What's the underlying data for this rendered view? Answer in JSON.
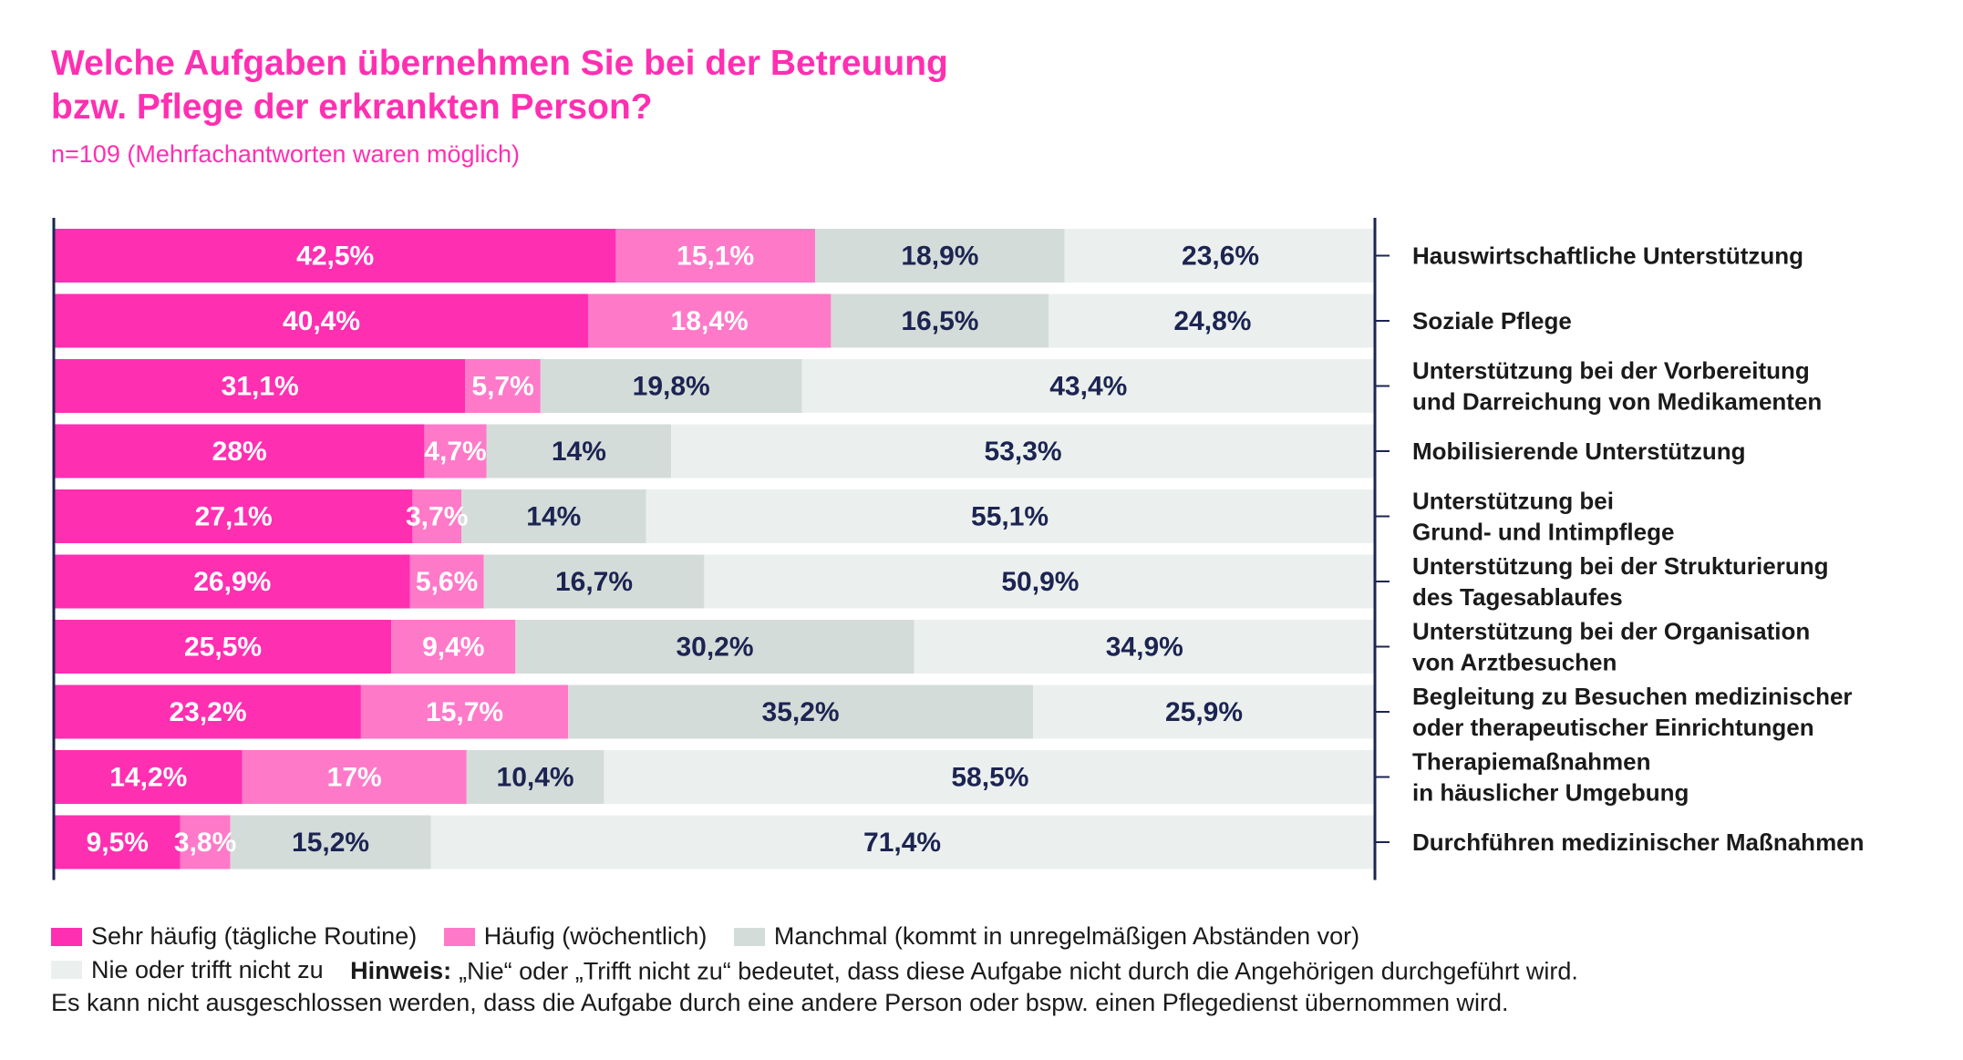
{
  "title_line1": "Welche Aufgaben übernehmen Sie bei der Betreuung",
  "title_line2": "bzw. Pflege der erkrankten Person?",
  "subtitle": "n=109 (Mehrfachantworten waren möglich)",
  "colors": {
    "sehr_haeufig": "#ff2fb1",
    "haeufig": "#ff79c9",
    "manchmal": "#d4dcd9",
    "nie": "#ebf0ee",
    "text_dark": "#1c2452",
    "text_light": "#ffffff",
    "axis": "#1c2452"
  },
  "chart_data": {
    "type": "bar",
    "orientation": "horizontal",
    "stacked": true,
    "xlim": [
      0,
      100
    ],
    "categories": [
      [
        "Hauswirtschaftliche Unterstützung"
      ],
      [
        "Soziale Pflege"
      ],
      [
        "Unterstützung bei der Vorbereitung",
        "und Darreichung von Medikamenten"
      ],
      [
        "Mobilisierende Unterstützung"
      ],
      [
        "Unterstützung bei",
        "Grund- und Intimpflege"
      ],
      [
        "Unterstützung bei der Strukturierung",
        "des Tagesablaufes"
      ],
      [
        "Unterstützung bei der Organisation",
        "von Arztbesuchen"
      ],
      [
        "Begleitung zu Besuchen medizinischer",
        "oder therapeutischer Einrichtungen"
      ],
      [
        "Therapiemaßnahmen",
        "in häuslicher Umgebung"
      ],
      [
        "Durchführen medizinischer Maßnahmen"
      ]
    ],
    "series": [
      {
        "name": "Sehr häufig (tägliche Routine)",
        "color_key": "sehr_haeufig",
        "label_color_key": "text_light",
        "values": [
          42.5,
          40.4,
          31.1,
          28,
          27.1,
          26.9,
          25.5,
          23.2,
          14.2,
          9.5
        ],
        "labels": [
          "42,5%",
          "40,4%",
          "31,1%",
          "28%",
          "27,1%",
          "26,9%",
          "25,5%",
          "23,2%",
          "14,2%",
          "9,5%"
        ]
      },
      {
        "name": "Häufig (wöchentlich)",
        "color_key": "haeufig",
        "label_color_key": "text_light",
        "values": [
          15.1,
          18.4,
          5.7,
          4.7,
          3.7,
          5.6,
          9.4,
          15.7,
          17,
          3.8
        ],
        "labels": [
          "15,1%",
          "18,4%",
          "5,7%",
          "4,7%",
          "3,7%",
          "5,6%",
          "9,4%",
          "15,7%",
          "17%",
          "3,8%"
        ]
      },
      {
        "name": "Manchmal (kommt in unregelmäßigen Abständen vor)",
        "color_key": "manchmal",
        "label_color_key": "text_dark",
        "values": [
          18.9,
          16.5,
          19.8,
          14,
          14,
          16.7,
          30.2,
          35.2,
          10.4,
          15.2
        ],
        "labels": [
          "18,9%",
          "16,5%",
          "19,8%",
          "14%",
          "14%",
          "16,7%",
          "30,2%",
          "35,2%",
          "10,4%",
          "15,2%"
        ]
      },
      {
        "name": "Nie oder trifft nicht zu",
        "color_key": "nie",
        "label_color_key": "text_dark",
        "values": [
          23.6,
          24.8,
          43.4,
          53.3,
          55.1,
          50.9,
          34.9,
          25.9,
          58.5,
          71.4
        ],
        "labels": [
          "23,6%",
          "24,8%",
          "43,4%",
          "53,3%",
          "55,1%",
          "50,9%",
          "34,9%",
          "25,9%",
          "58,5%",
          "71,4%"
        ]
      }
    ],
    "legend_position": "bottom",
    "grid": false
  },
  "legend": {
    "hint_label": "Hinweis:",
    "hint_text": "„Nie“ oder „Trifft nicht zu“ bedeutet, dass diese Aufgabe nicht durch die Angehörigen durchgeführt wird.",
    "note_line": "Es kann nicht ausgeschlossen werden, dass die Aufgabe durch eine andere Person oder bspw. einen Pflegedienst übernommen wird."
  }
}
